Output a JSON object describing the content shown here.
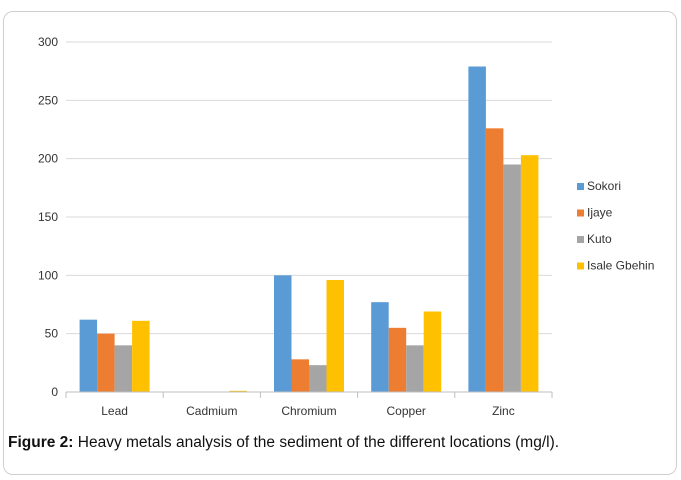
{
  "caption": {
    "label": "Figure 2:",
    "text": " Heavy metals analysis of the sediment of the different locations (mg/l)."
  },
  "colors": {
    "Sokori": "#5b9bd5",
    "Ijaye": "#ed7d31",
    "Kuto": "#a5a5a5",
    "Isale Gbehin": "#ffc000",
    "grid": "#d9d9d9",
    "axis": "#bfbfbf"
  },
  "chart_data": {
    "type": "bar",
    "categories": [
      "Lead",
      "Cadmium",
      "Chromium",
      "Copper",
      "Zinc"
    ],
    "series": [
      {
        "name": "Sokori",
        "values": [
          62,
          0,
          100,
          77,
          279
        ]
      },
      {
        "name": "Ijaye",
        "values": [
          50,
          0,
          28,
          55,
          226
        ]
      },
      {
        "name": "Kuto",
        "values": [
          40,
          0,
          23,
          40,
          195
        ]
      },
      {
        "name": "Isale Gbehin",
        "values": [
          61,
          1,
          96,
          69,
          203
        ]
      }
    ],
    "yticks": [
      "0",
      "50",
      "100",
      "150",
      "200",
      "250",
      "300"
    ],
    "ylim": [
      0,
      300
    ],
    "grid": true,
    "legend": "right",
    "title": "",
    "xlabel": "",
    "ylabel": ""
  }
}
